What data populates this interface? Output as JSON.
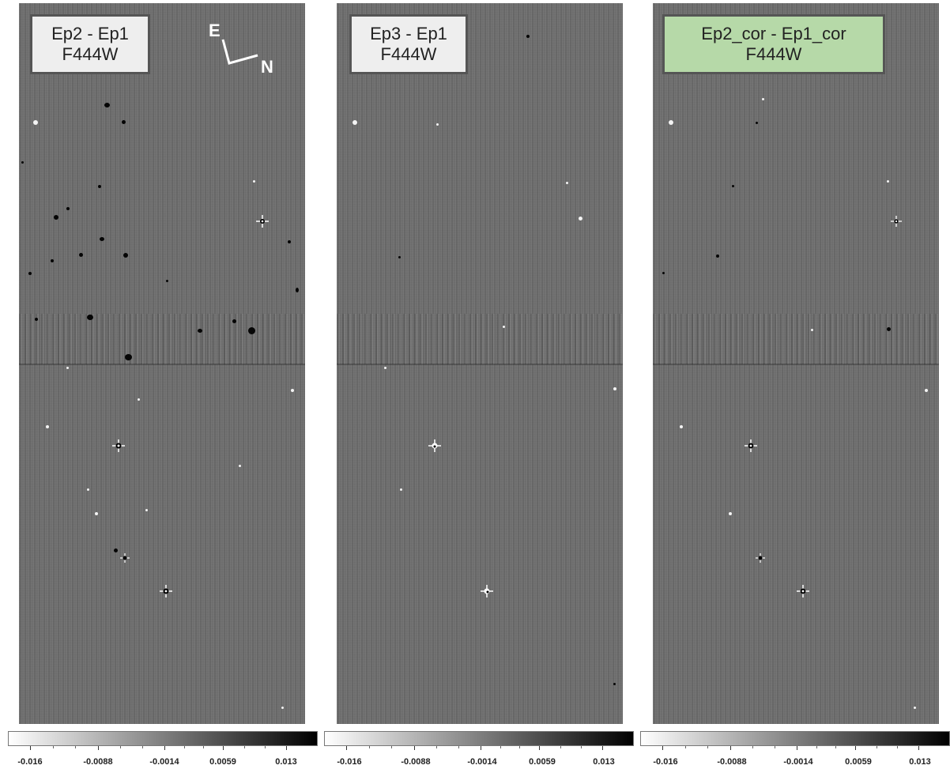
{
  "panels": [
    {
      "title_line1": "Ep2 - Ep1",
      "title_line2": "F444W",
      "highlighted": false,
      "compass": {
        "east_label": "E",
        "north_label": "N"
      }
    },
    {
      "title_line1": "Ep3 - Ep1",
      "title_line2": "F444W",
      "highlighted": false
    },
    {
      "title_line1": "Ep2_cor - Ep1_cor",
      "title_line2": "F444W",
      "highlighted": true
    }
  ],
  "colorbar": {
    "ticks": [
      "-0.016",
      "-0.0088",
      "-0.0014",
      "0.0059",
      "0.013"
    ],
    "colormap": "white-to-black grayscale"
  },
  "colors": {
    "highlight_box": "#b6d9a8",
    "label_box": "#eeeeee",
    "label_border": "#555555",
    "image_background": "#6f6f6f"
  }
}
